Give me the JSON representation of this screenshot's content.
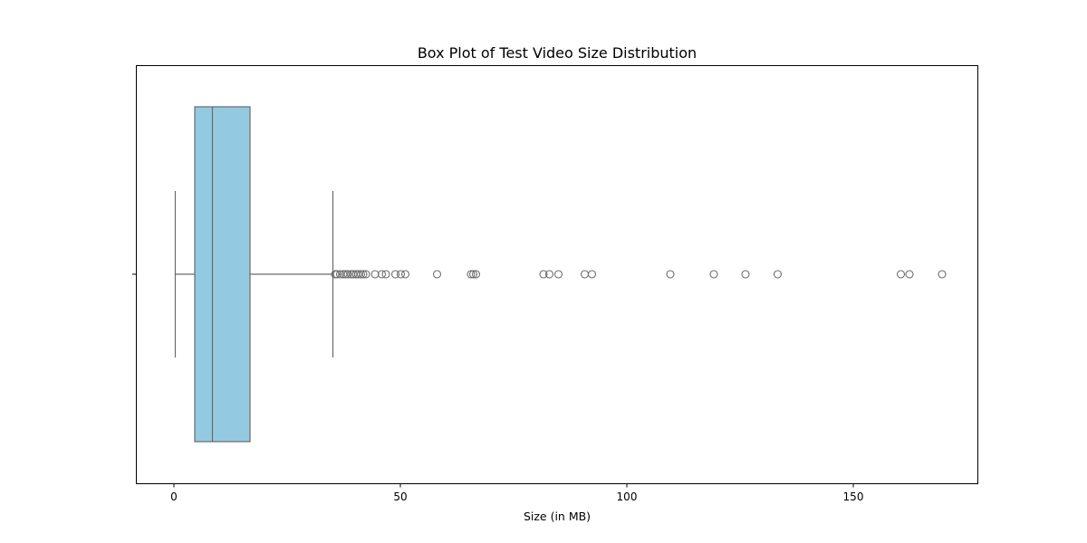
{
  "chart_data": {
    "type": "box",
    "title": "Box Plot of Test Video Size Distribution",
    "xlabel": "Size (in MB)",
    "ylabel": "",
    "xlim": [
      -8.2,
      177.6
    ],
    "x_ticks": [
      0,
      50,
      100,
      150
    ],
    "orientation": "horizontal",
    "box_color": "#93CAE1",
    "line_color": "#6b6b6b",
    "stats": {
      "whisker_low": 0.3,
      "q1": 4.6,
      "median": 8.5,
      "q3": 16.8,
      "whisker_high": 35.1
    },
    "outliers": [
      35.6,
      36.0,
      36.7,
      37.4,
      37.9,
      38.4,
      39.1,
      39.6,
      40.2,
      40.7,
      41.3,
      41.8,
      42.4,
      44.4,
      45.9,
      46.8,
      48.9,
      50.1,
      51.1,
      58.1,
      65.6,
      66.1,
      66.7,
      81.6,
      82.9,
      84.9,
      90.7,
      92.3,
      109.6,
      119.2,
      126.2,
      133.3,
      160.5,
      162.4,
      169.6
    ],
    "grid": false,
    "legend": "none"
  }
}
